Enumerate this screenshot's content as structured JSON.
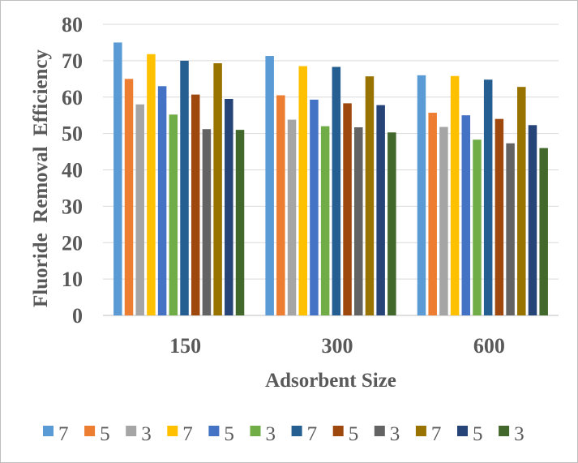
{
  "chart_data": {
    "type": "bar",
    "title": "",
    "xlabel": "Adsorbent Size",
    "ylabel": "Fluoride  Removal  Efficiency",
    "ylim": [
      0,
      80
    ],
    "yticks": [
      0,
      10,
      20,
      30,
      40,
      50,
      60,
      70,
      80
    ],
    "grid": true,
    "legend_position": "bottom",
    "categories": [
      "150",
      "300",
      "600"
    ],
    "series": [
      {
        "name": "7",
        "color": "#5B9BD5",
        "values": [
          75,
          71.3,
          66
        ]
      },
      {
        "name": "5",
        "color": "#ED7D31",
        "values": [
          65,
          60.5,
          55.7
        ]
      },
      {
        "name": "3",
        "color": "#A5A5A5",
        "values": [
          58,
          53.8,
          51.8
        ]
      },
      {
        "name": "7",
        "color": "#FFC000",
        "values": [
          71.8,
          68.5,
          65.8
        ]
      },
      {
        "name": "5",
        "color": "#4472C4",
        "values": [
          63,
          59.3,
          55
        ]
      },
      {
        "name": "3",
        "color": "#70AD47",
        "values": [
          55.2,
          52,
          48.3
        ]
      },
      {
        "name": "7",
        "color": "#255E91",
        "values": [
          70,
          68.3,
          64.8
        ]
      },
      {
        "name": "5",
        "color": "#9E480E",
        "values": [
          60.7,
          58.3,
          54
        ]
      },
      {
        "name": "3",
        "color": "#636363",
        "values": [
          51.2,
          51.7,
          47.3
        ]
      },
      {
        "name": "7",
        "color": "#997300",
        "values": [
          69.3,
          65.7,
          62.8
        ]
      },
      {
        "name": "5",
        "color": "#264478",
        "values": [
          59.5,
          57.8,
          52.3
        ]
      },
      {
        "name": "3",
        "color": "#43682B",
        "values": [
          51,
          50.3,
          46
        ]
      }
    ]
  }
}
